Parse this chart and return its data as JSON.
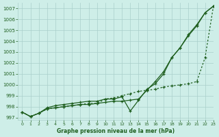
{
  "title": "Graphe pression niveau de la mer (hPa)",
  "bg_color": "#ceeee8",
  "grid_color": "#aacfca",
  "line_color": "#1e5e1e",
  "xlim": [
    -0.5,
    23
  ],
  "ylim": [
    996.8,
    1007.5
  ],
  "yticks": [
    997,
    998,
    999,
    1000,
    1001,
    1002,
    1003,
    1004,
    1005,
    1006,
    1007
  ],
  "xticks": [
    0,
    1,
    2,
    3,
    4,
    5,
    6,
    7,
    8,
    9,
    10,
    11,
    12,
    13,
    14,
    15,
    16,
    17,
    18,
    19,
    20,
    21,
    22,
    23
  ],
  "x": [
    0,
    1,
    2,
    3,
    4,
    5,
    6,
    7,
    8,
    9,
    10,
    11,
    12,
    13,
    14,
    15,
    16,
    17,
    18,
    19,
    20,
    21,
    22,
    23
  ],
  "line1": [
    997.5,
    997.1,
    997.4,
    997.8,
    997.9,
    998.0,
    998.1,
    998.2,
    998.2,
    998.3,
    998.4,
    998.5,
    998.5,
    998.6,
    998.7,
    999.5,
    1000.3,
    1001.2,
    1002.5,
    1003.4,
    1004.5,
    1005.4,
    1006.6,
    1007.2
  ],
  "line2": [
    997.5,
    997.1,
    997.4,
    997.9,
    998.1,
    998.2,
    998.3,
    998.4,
    998.5,
    998.5,
    998.7,
    998.7,
    998.9,
    997.6,
    998.6,
    999.6,
    1000.1,
    1001.0,
    1002.5,
    1003.4,
    1004.6,
    1005.5,
    1006.6,
    1007.2
  ],
  "line3": [
    997.5,
    997.1,
    997.4,
    997.8,
    997.9,
    998.0,
    998.1,
    998.2,
    998.3,
    998.3,
    998.7,
    998.8,
    999.0,
    999.2,
    999.4,
    999.5,
    999.6,
    999.8,
    999.9,
    1000.0,
    1000.1,
    1000.3,
    1002.5,
    1007.2
  ]
}
